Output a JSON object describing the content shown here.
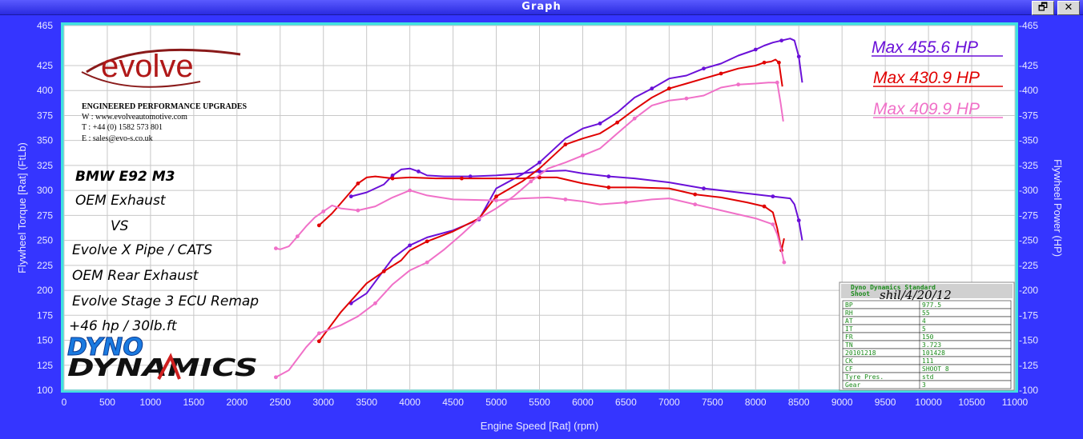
{
  "window": {
    "title": "Graph",
    "restore_glyph": "🗗",
    "close_glyph": "✕"
  },
  "logo": {
    "brand": "evolve",
    "tagline": "ENGINEERED PERFORMANCE UPGRADES",
    "web": "W : www.evolveautomotive.com",
    "tel": "T : +44 (0) 1582 573 801",
    "email": "E : sales@evo-s.co.uk"
  },
  "notes": [
    "BMW E92 M3",
    "OEM Exhaust",
    "VS",
    "Evolve X Pipe / CATS",
    "OEM Rear Exhaust",
    "Evolve Stage 3 ECU Remap",
    "+46 hp / 30lb.ft"
  ],
  "dyno_logo": {
    "line1": "DYNO",
    "line2": "DYNAMICS"
  },
  "max_labels": [
    {
      "text": "Max 455.6 HP",
      "color": "#6a10d8"
    },
    {
      "text": "Max 430.9 HP",
      "color": "#e00000"
    },
    {
      "text": "Max 409.9 HP",
      "color": "#f070c8"
    }
  ],
  "info_box": {
    "title": "Dyno Dynamics Standard",
    "sub": "Shoot",
    "stamp": "shil/4/20/12",
    "rows": [
      [
        "BP",
        "977.5"
      ],
      [
        "RH",
        "55"
      ],
      [
        "AT",
        "4"
      ],
      [
        "IT",
        "5"
      ],
      [
        "FR",
        "150"
      ],
      [
        "TN",
        "3.723"
      ],
      [
        "20101218",
        "101428"
      ],
      [
        "CK",
        "111"
      ],
      [
        "CF",
        "SHOOT 8"
      ],
      [
        "Tyre Pres.",
        "std"
      ],
      [
        "Gear",
        "3"
      ]
    ]
  },
  "chart_data": {
    "type": "line",
    "xlabel": "Engine Speed [Rat] (rpm)",
    "ylabel_left": "Flywheel Torque [Rat] (FtLb)",
    "ylabel_right": "Flywheel Power (HP)",
    "xlim": [
      0,
      11000
    ],
    "ylim": [
      100,
      465
    ],
    "xticks": [
      0,
      500,
      1000,
      1500,
      2000,
      2500,
      3000,
      3500,
      4000,
      4500,
      5000,
      5500,
      6000,
      6500,
      7000,
      7500,
      8000,
      8500,
      9000,
      9500,
      10000,
      10500,
      11000
    ],
    "yticks": [
      100,
      125,
      150,
      175,
      200,
      225,
      250,
      275,
      300,
      325,
      350,
      375,
      400,
      425,
      465
    ],
    "series": [
      {
        "name": "Max 455.6 HP",
        "color": "#6a10d8",
        "kind": "power",
        "x": [
          3320,
          3500,
          3800,
          4000,
          4200,
          4500,
          4800,
          5000,
          5300,
          5500,
          5800,
          6000,
          6200,
          6400,
          6600,
          6800,
          7000,
          7200,
          7400,
          7600,
          7800,
          8000,
          8100,
          8200,
          8300,
          8400,
          8450,
          8500,
          8540
        ],
        "y": [
          187,
          197,
          232,
          245,
          253,
          260,
          271,
          302,
          316,
          328,
          352,
          362,
          367,
          378,
          393,
          402,
          412,
          415,
          422,
          427,
          435,
          441,
          445,
          448,
          450,
          452,
          450,
          434,
          408
        ]
      },
      {
        "name": "Max 455.6 HP",
        "color": "#6a10d8",
        "kind": "torque",
        "x": [
          3320,
          3500,
          3700,
          3800,
          3900,
          4000,
          4100,
          4200,
          4400,
          4700,
          5000,
          5300,
          5500,
          5800,
          6000,
          6300,
          6600,
          7000,
          7400,
          7800,
          8000,
          8200,
          8400,
          8450,
          8500,
          8540
        ],
        "y": [
          294,
          298,
          306,
          315,
          321,
          322,
          319,
          315,
          314,
          314,
          315,
          317,
          319,
          320,
          317,
          314,
          312,
          308,
          302,
          298,
          296,
          294,
          292,
          286,
          270,
          250
        ]
      },
      {
        "name": "Max 430.9 HP",
        "color": "#e00000",
        "kind": "power",
        "x": [
          2950,
          3200,
          3500,
          3700,
          3900,
          4000,
          4200,
          4500,
          4800,
          5000,
          5300,
          5500,
          5800,
          6000,
          6200,
          6400,
          6600,
          6800,
          7000,
          7200,
          7400,
          7600,
          7800,
          8000,
          8100,
          8180,
          8230,
          8270,
          8310
        ],
        "y": [
          149,
          178,
          207,
          219,
          230,
          240,
          249,
          259,
          272,
          294,
          309,
          322,
          346,
          352,
          357,
          368,
          381,
          393,
          402,
          407,
          412,
          417,
          422,
          425,
          428,
          429,
          431,
          428,
          404
        ]
      },
      {
        "name": "Max 430.9 HP",
        "color": "#e00000",
        "kind": "torque",
        "x": [
          2950,
          3100,
          3300,
          3400,
          3500,
          3600,
          3800,
          4000,
          4300,
          4600,
          5000,
          5300,
          5500,
          5700,
          6000,
          6300,
          6600,
          7000,
          7300,
          7600,
          7900,
          8100,
          8200,
          8250,
          8300,
          8330
        ],
        "y": [
          265,
          277,
          297,
          307,
          313,
          314,
          312,
          313,
          312,
          312,
          312,
          312,
          313,
          313,
          307,
          303,
          303,
          302,
          296,
          293,
          288,
          284,
          278,
          262,
          240,
          252
        ]
      },
      {
        "name": "Max 409.9 HP",
        "color": "#f070c8",
        "kind": "power",
        "x": [
          2450,
          2600,
          2800,
          2950,
          3200,
          3400,
          3600,
          3800,
          4000,
          4200,
          4400,
          4600,
          4800,
          5000,
          5200,
          5400,
          5600,
          5800,
          6000,
          6200,
          6400,
          6600,
          6800,
          7000,
          7200,
          7400,
          7600,
          7800,
          8000,
          8150,
          8250,
          8290,
          8320
        ],
        "y": [
          113,
          120,
          143,
          157,
          165,
          174,
          187,
          206,
          220,
          228,
          241,
          256,
          272,
          282,
          294,
          309,
          322,
          328,
          335,
          342,
          357,
          372,
          385,
          390,
          392,
          395,
          403,
          406,
          407,
          408,
          408,
          387,
          369
        ]
      },
      {
        "name": "Max 409.9 HP",
        "color": "#f070c8",
        "kind": "torque",
        "x": [
          2450,
          2500,
          2600,
          2700,
          2800,
          2900,
          3000,
          3100,
          3200,
          3400,
          3600,
          3800,
          4000,
          4200,
          4500,
          5000,
          5300,
          5600,
          5800,
          6000,
          6200,
          6500,
          6800,
          7000,
          7300,
          7600,
          8000,
          8200,
          8250,
          8300,
          8330
        ],
        "y": [
          242,
          241,
          244,
          254,
          264,
          273,
          279,
          285,
          282,
          280,
          284,
          293,
          300,
          295,
          291,
          290,
          292,
          293,
          291,
          289,
          286,
          288,
          291,
          292,
          286,
          280,
          272,
          266,
          256,
          240,
          228
        ]
      }
    ]
  }
}
